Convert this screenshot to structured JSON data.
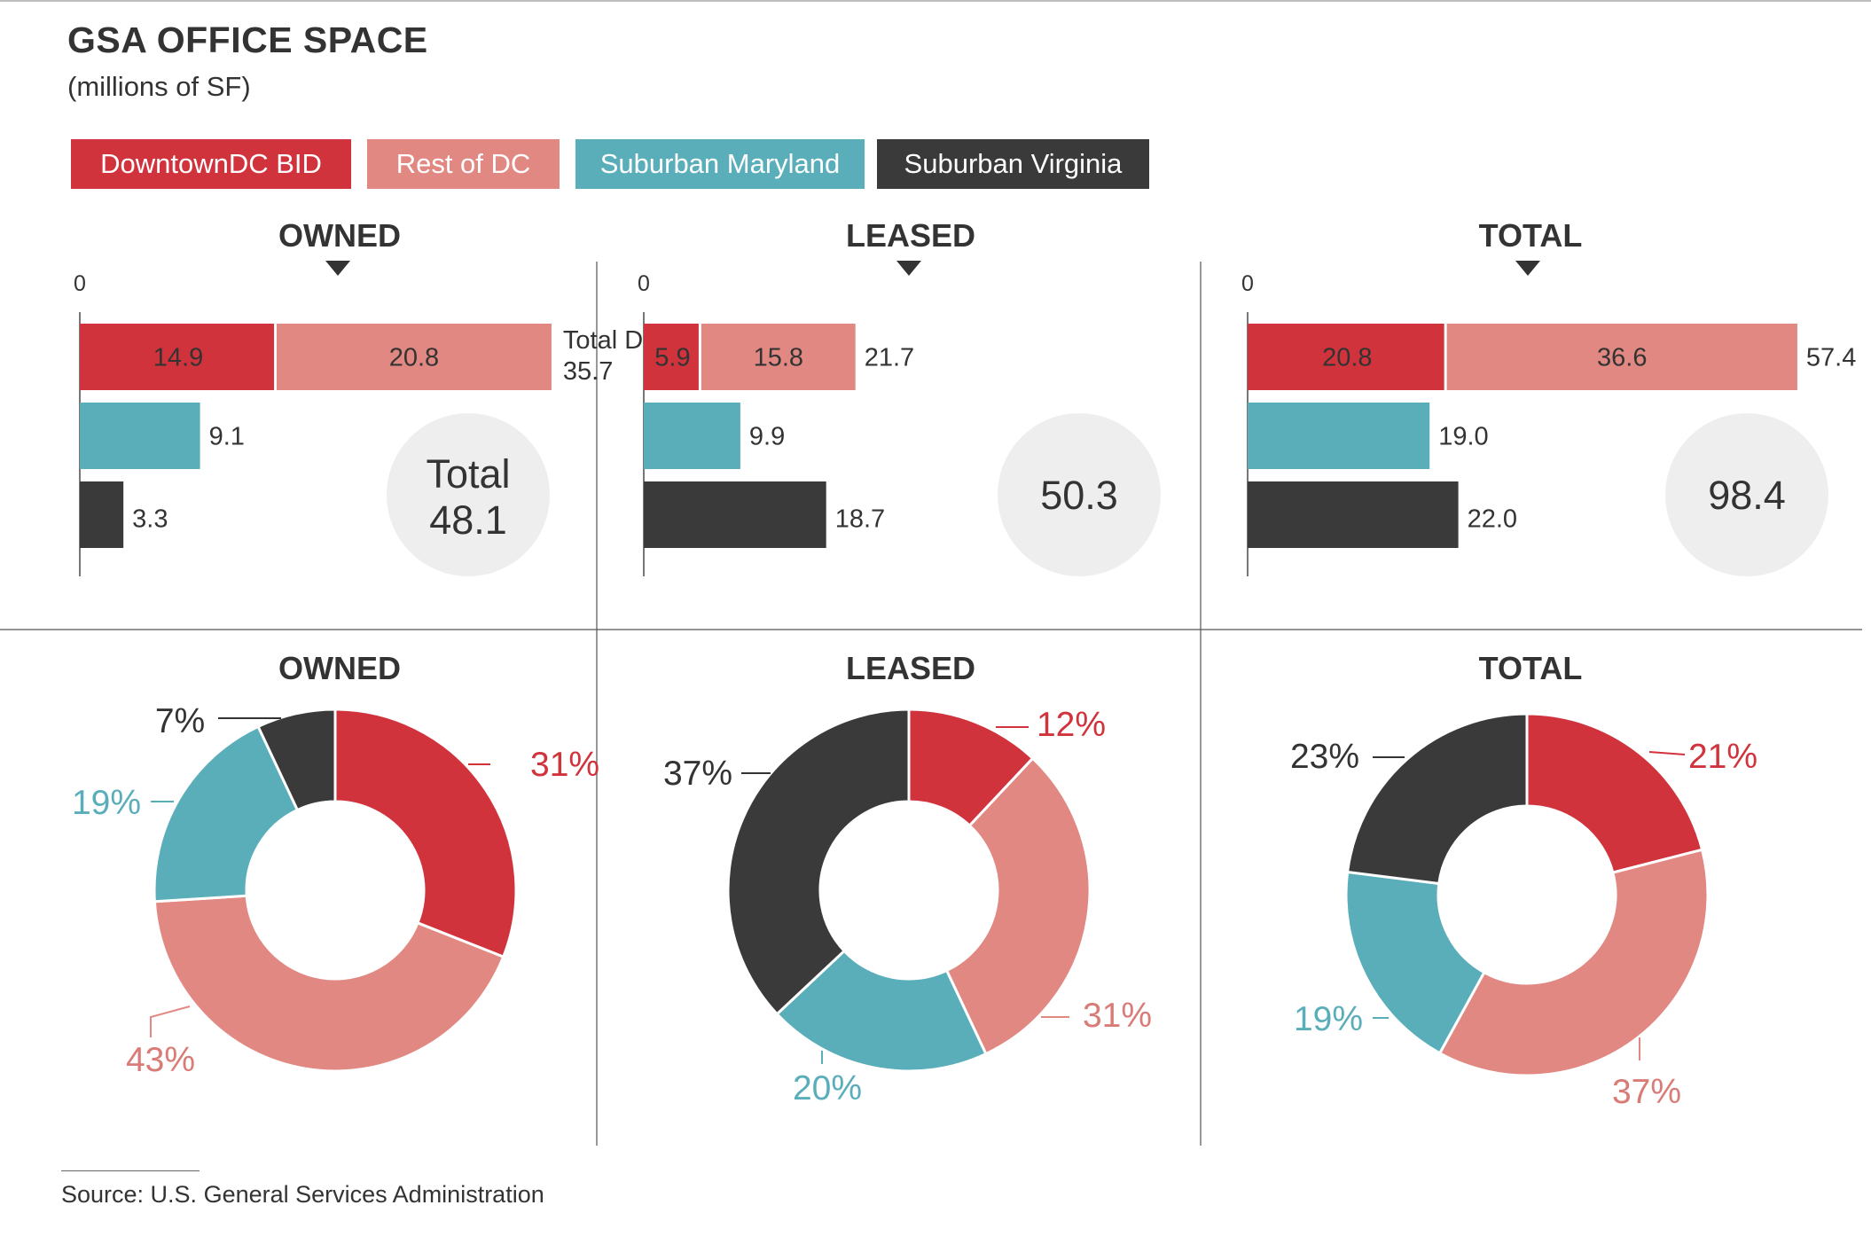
{
  "title": "GSA OFFICE SPACE",
  "subtitle": "(millions of SF)",
  "legend": [
    {
      "label": "DowntownDC BID",
      "color": "#d1333d"
    },
    {
      "label": "Rest of DC",
      "color": "#e28882"
    },
    {
      "label": "Suburban Maryland",
      "color": "#5aaeba"
    },
    {
      "label": "Suburban Virginia",
      "color": "#3a3a3a"
    }
  ],
  "source": "Source: U.S. General Services Administration",
  "chart_data": [
    {
      "type": "bar",
      "title": "OWNED",
      "axis_zero": "0",
      "rows": [
        {
          "segments": [
            {
              "series": "DowntownDC BID",
              "value": 14.9,
              "label": "14.9"
            },
            {
              "series": "Rest of DC",
              "value": 20.8,
              "label": "20.8"
            }
          ],
          "total_label": "Total DC",
          "total_value": "35.7"
        },
        {
          "segments": [
            {
              "series": "Suburban Maryland",
              "value": 9.1
            }
          ],
          "total_value": "9.1"
        },
        {
          "segments": [
            {
              "series": "Suburban Virginia",
              "value": 3.3
            }
          ],
          "total_value": "3.3"
        }
      ],
      "grand_total_label": "Total",
      "grand_total": "48.1"
    },
    {
      "type": "bar",
      "title": "LEASED",
      "axis_zero": "0",
      "rows": [
        {
          "segments": [
            {
              "series": "DowntownDC BID",
              "value": 5.9,
              "label": "5.9"
            },
            {
              "series": "Rest of DC",
              "value": 15.8,
              "label": "15.8"
            }
          ],
          "total_value": "21.7"
        },
        {
          "segments": [
            {
              "series": "Suburban Maryland",
              "value": 9.9
            }
          ],
          "total_value": "9.9"
        },
        {
          "segments": [
            {
              "series": "Suburban Virginia",
              "value": 18.7
            }
          ],
          "total_value": "18.7"
        }
      ],
      "grand_total": "50.3"
    },
    {
      "type": "bar",
      "title": "TOTAL",
      "axis_zero": "0",
      "rows": [
        {
          "segments": [
            {
              "series": "DowntownDC BID",
              "value": 20.8,
              "label": "20.8"
            },
            {
              "series": "Rest of DC",
              "value": 36.6,
              "label": "36.6"
            }
          ],
          "total_value": "57.4"
        },
        {
          "segments": [
            {
              "series": "Suburban Maryland",
              "value": 19.0
            }
          ],
          "total_value": "19.0"
        },
        {
          "segments": [
            {
              "series": "Suburban Virginia",
              "value": 22.0
            }
          ],
          "total_value": "22.0"
        }
      ],
      "grand_total": "98.4"
    },
    {
      "type": "pie",
      "title": "OWNED",
      "slices": [
        {
          "series": "DowntownDC BID",
          "value": 31,
          "label": "31%"
        },
        {
          "series": "Rest of DC",
          "value": 43,
          "label": "43%"
        },
        {
          "series": "Suburban Maryland",
          "value": 19,
          "label": "19%"
        },
        {
          "series": "Suburban Virginia",
          "value": 7,
          "label": "7%"
        }
      ]
    },
    {
      "type": "pie",
      "title": "LEASED",
      "slices": [
        {
          "series": "DowntownDC BID",
          "value": 12,
          "label": "12%"
        },
        {
          "series": "Rest of DC",
          "value": 31,
          "label": "31%"
        },
        {
          "series": "Suburban Maryland",
          "value": 20,
          "label": "20%"
        },
        {
          "series": "Suburban Virginia",
          "value": 37,
          "label": "37%"
        }
      ]
    },
    {
      "type": "pie",
      "title": "TOTAL",
      "slices": [
        {
          "series": "DowntownDC BID",
          "value": 21,
          "label": "21%"
        },
        {
          "series": "Rest of DC",
          "value": 37,
          "label": "37%"
        },
        {
          "series": "Suburban Maryland",
          "value": 19,
          "label": "19%"
        },
        {
          "series": "Suburban Virginia",
          "value": 23,
          "label": "23%"
        }
      ]
    }
  ]
}
